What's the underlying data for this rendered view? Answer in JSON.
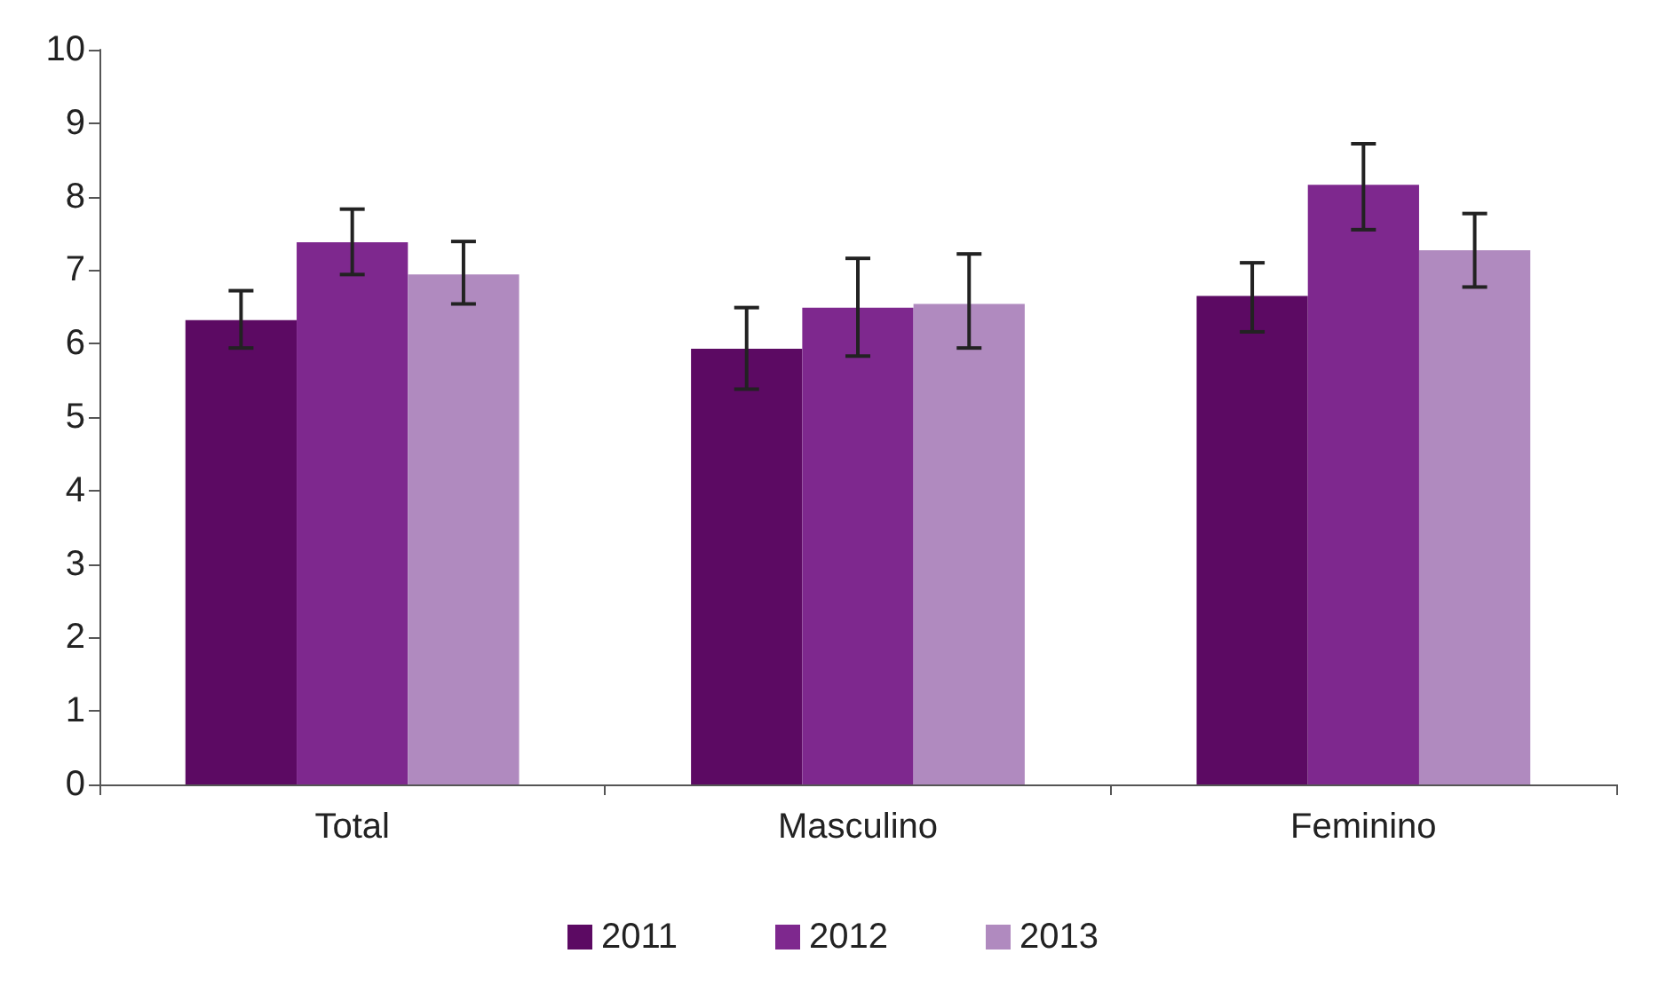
{
  "chart_data": {
    "type": "bar",
    "categories": [
      "Total",
      "Masculino",
      "Feminino"
    ],
    "series": [
      {
        "name": "2011",
        "color": "#5c0a63",
        "values": [
          6.32,
          5.93,
          6.65
        ],
        "errors": [
          [
            5.94,
            6.72
          ],
          [
            5.38,
            6.49
          ],
          [
            6.16,
            7.1
          ]
        ]
      },
      {
        "name": "2012",
        "color": "#7e288e",
        "values": [
          7.38,
          6.49,
          8.16
        ],
        "errors": [
          [
            6.94,
            7.83
          ],
          [
            5.83,
            7.16
          ],
          [
            7.55,
            8.72
          ]
        ]
      },
      {
        "name": "2013",
        "color": "#b08abf",
        "values": [
          6.94,
          6.54,
          7.27
        ],
        "errors": [
          [
            6.54,
            7.39
          ],
          [
            5.94,
            7.22
          ],
          [
            6.77,
            7.77
          ]
        ]
      }
    ],
    "ylim": [
      0,
      10
    ],
    "yticks": [
      0,
      1,
      2,
      3,
      4,
      5,
      6,
      7,
      8,
      9,
      10
    ],
    "grid": false,
    "legend": "bottom"
  }
}
